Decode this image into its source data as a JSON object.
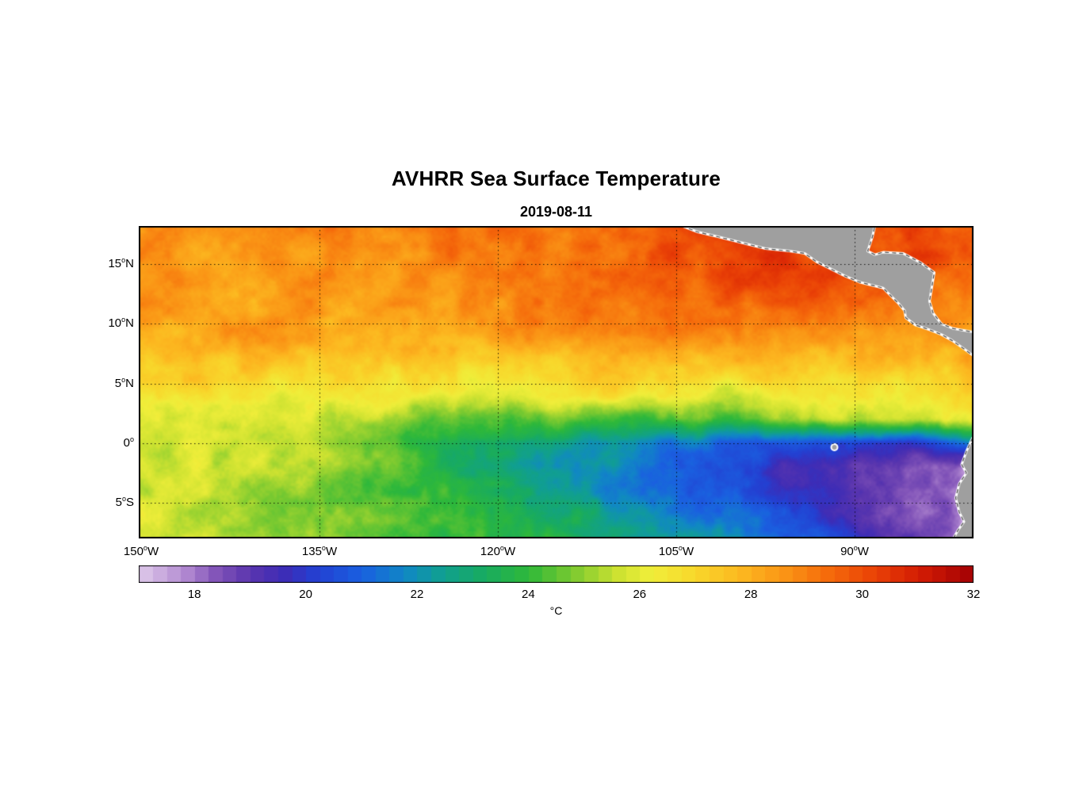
{
  "figure": {
    "title": "AVHRR Sea Surface Temperature",
    "subtitle": "2019-08-11",
    "colorbar_label": "°C",
    "degree_glyph": "o"
  },
  "chart_data": {
    "type": "heatmap",
    "title": "AVHRR Sea Surface Temperature",
    "subtitle": "2019-08-11",
    "grid_lines": "dotted",
    "x_axis": {
      "range": [
        -150.2,
        -80.0
      ],
      "ticks": [
        {
          "value": -150,
          "text": "150",
          "hemi": "W"
        },
        {
          "value": -135,
          "text": "135",
          "hemi": "W"
        },
        {
          "value": -120,
          "text": "120",
          "hemi": "W"
        },
        {
          "value": -105,
          "text": "105",
          "hemi": "W"
        },
        {
          "value": -90,
          "text": "90",
          "hemi": "W"
        }
      ]
    },
    "y_axis": {
      "range": [
        -8.0,
        18.2
      ],
      "ticks": [
        {
          "value": 15,
          "text": "15",
          "hemi": "N"
        },
        {
          "value": 10,
          "text": "10",
          "hemi": "N"
        },
        {
          "value": 5,
          "text": "5",
          "hemi": "N"
        },
        {
          "value": 0,
          "text": "0",
          "hemi": ""
        },
        {
          "value": -5,
          "text": "5",
          "hemi": "S"
        }
      ]
    },
    "colorbar": {
      "label": "°C",
      "range": [
        17,
        32
      ],
      "ticks": [
        18,
        20,
        22,
        24,
        26,
        28,
        30,
        32
      ],
      "colormap_stops": [
        {
          "v": 17.0,
          "c": "#dfcaea"
        },
        {
          "v": 17.8,
          "c": "#b48cd2"
        },
        {
          "v": 18.4,
          "c": "#8153b8"
        },
        {
          "v": 19.0,
          "c": "#5a35ae"
        },
        {
          "v": 19.6,
          "c": "#3d2cb6"
        },
        {
          "v": 20.2,
          "c": "#2340d2"
        },
        {
          "v": 21.0,
          "c": "#1a60e0"
        },
        {
          "v": 21.8,
          "c": "#1088c4"
        },
        {
          "v": 22.4,
          "c": "#109e94"
        },
        {
          "v": 23.2,
          "c": "#18ab60"
        },
        {
          "v": 24.0,
          "c": "#2eb83a"
        },
        {
          "v": 24.8,
          "c": "#7cca30"
        },
        {
          "v": 25.6,
          "c": "#cde231"
        },
        {
          "v": 26.2,
          "c": "#f0ee3a"
        },
        {
          "v": 27.0,
          "c": "#f8d72b"
        },
        {
          "v": 27.8,
          "c": "#fcb820"
        },
        {
          "v": 28.6,
          "c": "#fa9415"
        },
        {
          "v": 29.4,
          "c": "#f56a0b"
        },
        {
          "v": 30.2,
          "c": "#ea4206"
        },
        {
          "v": 31.0,
          "c": "#d41d04"
        },
        {
          "v": 32.0,
          "c": "#a30004"
        }
      ]
    },
    "grid": {
      "lons": [
        -150,
        -145,
        -140,
        -135,
        -130,
        -125,
        -120,
        -115,
        -110,
        -105,
        -100,
        -95,
        -90,
        -85,
        -80
      ],
      "lats": [
        18,
        16,
        14,
        12,
        10,
        8,
        6,
        4,
        2,
        0,
        -2,
        -4,
        -6,
        -8
      ],
      "sst_c": [
        [
          28.8,
          28.6,
          28.7,
          28.9,
          29.0,
          29.2,
          29.1,
          29.4,
          29.6,
          30.0,
          30.2,
          30.0,
          29.8,
          29.9,
          29.5
        ],
        [
          28.6,
          28.5,
          28.8,
          28.6,
          28.9,
          29.0,
          29.2,
          29.0,
          29.4,
          29.8,
          30.3,
          30.1,
          29.9,
          30.1,
          29.6
        ],
        [
          28.4,
          28.6,
          28.5,
          28.7,
          28.8,
          28.6,
          29.0,
          29.2,
          29.3,
          29.6,
          30.0,
          30.3,
          30.0,
          29.7,
          29.4
        ],
        [
          28.3,
          28.4,
          28.2,
          28.5,
          28.4,
          28.6,
          28.8,
          29.0,
          29.2,
          29.4,
          29.7,
          29.9,
          29.6,
          29.2,
          29.0
        ],
        [
          28.2,
          28.3,
          28.4,
          28.2,
          28.3,
          28.4,
          28.5,
          28.7,
          28.9,
          29.0,
          29.1,
          28.9,
          28.7,
          28.6,
          28.8
        ],
        [
          28.0,
          28.1,
          28.0,
          27.9,
          28.1,
          27.8,
          27.9,
          28.0,
          28.2,
          28.3,
          28.2,
          28.0,
          27.8,
          28.1,
          28.4
        ],
        [
          27.2,
          27.4,
          27.3,
          27.0,
          27.2,
          26.9,
          27.0,
          27.2,
          27.4,
          27.3,
          27.4,
          27.2,
          27.0,
          27.3,
          27.6
        ],
        [
          26.5,
          26.6,
          26.4,
          26.2,
          26.5,
          26.3,
          26.1,
          26.4,
          26.6,
          26.4,
          25.6,
          26.3,
          26.6,
          26.8,
          27.0
        ],
        [
          26.2,
          26.0,
          26.1,
          25.8,
          25.4,
          24.8,
          24.3,
          24.6,
          24.1,
          24.5,
          24.3,
          25.0,
          25.4,
          25.9,
          26.2
        ],
        [
          25.8,
          25.9,
          25.6,
          25.2,
          24.6,
          23.8,
          23.2,
          22.6,
          22.0,
          21.5,
          21.0,
          20.5,
          20.0,
          19.9,
          22.0
        ],
        [
          25.9,
          25.7,
          25.4,
          25.0,
          24.4,
          23.6,
          23.0,
          22.4,
          21.6,
          21.0,
          20.2,
          19.6,
          19.0,
          18.5,
          18.2
        ],
        [
          25.7,
          25.5,
          25.2,
          24.8,
          24.4,
          24.0,
          23.4,
          22.8,
          22.0,
          21.2,
          20.4,
          19.8,
          19.2,
          18.4,
          17.8
        ],
        [
          25.8,
          25.6,
          25.2,
          24.9,
          24.6,
          24.3,
          23.9,
          23.3,
          22.7,
          21.9,
          21.0,
          20.2,
          19.6,
          18.6,
          17.6
        ],
        [
          25.7,
          25.5,
          25.2,
          24.9,
          24.6,
          24.3,
          24.0,
          23.6,
          23.0,
          22.4,
          21.6,
          20.8,
          20.0,
          18.9,
          17.5
        ]
      ]
    },
    "land_color": "#9f9f9f",
    "coastline_color": "#ffffff",
    "land_polygons": {
      "central_america": [
        [
          -104.5,
          18.2
        ],
        [
          -103.2,
          17.7
        ],
        [
          -101.5,
          17.3
        ],
        [
          -99.5,
          16.8
        ],
        [
          -97.5,
          16.3
        ],
        [
          -95.5,
          16.1
        ],
        [
          -94.2,
          15.9
        ],
        [
          -93.2,
          15.2
        ],
        [
          -92.2,
          14.7
        ],
        [
          -90.8,
          14.0
        ],
        [
          -89.6,
          13.5
        ],
        [
          -88.4,
          13.2
        ],
        [
          -87.6,
          13.0
        ],
        [
          -87.0,
          12.4
        ],
        [
          -86.3,
          11.7
        ],
        [
          -85.8,
          11.1
        ],
        [
          -85.7,
          10.5
        ],
        [
          -84.9,
          9.9
        ],
        [
          -83.7,
          9.5
        ],
        [
          -82.7,
          9.1
        ],
        [
          -81.8,
          8.6
        ],
        [
          -80.8,
          7.9
        ],
        [
          -80.0,
          7.3
        ],
        [
          -80.0,
          9.3
        ],
        [
          -81.7,
          9.6
        ],
        [
          -82.7,
          10.0
        ],
        [
          -83.4,
          10.9
        ],
        [
          -83.7,
          11.9
        ],
        [
          -83.5,
          13.1
        ],
        [
          -83.3,
          14.3
        ],
        [
          -84.4,
          15.1
        ],
        [
          -85.9,
          15.9
        ],
        [
          -87.6,
          16.0
        ],
        [
          -88.3,
          15.8
        ],
        [
          -88.9,
          16.1
        ],
        [
          -88.5,
          17.3
        ],
        [
          -88.3,
          18.2
        ]
      ],
      "south_america": [
        [
          -78.0,
          1.2
        ],
        [
          -79.7,
          1.0
        ],
        [
          -80.1,
          0.4
        ],
        [
          -80.6,
          -0.7
        ],
        [
          -81.0,
          -1.8
        ],
        [
          -80.6,
          -2.5
        ],
        [
          -81.2,
          -3.4
        ],
        [
          -81.5,
          -4.6
        ],
        [
          -81.2,
          -5.8
        ],
        [
          -80.8,
          -6.6
        ],
        [
          -81.3,
          -7.3
        ],
        [
          -81.7,
          -8.0
        ],
        [
          -78.0,
          -8.0
        ]
      ],
      "galapagos_island": {
        "lon": -91.7,
        "lat": -0.35,
        "radius_px": 4
      }
    }
  }
}
